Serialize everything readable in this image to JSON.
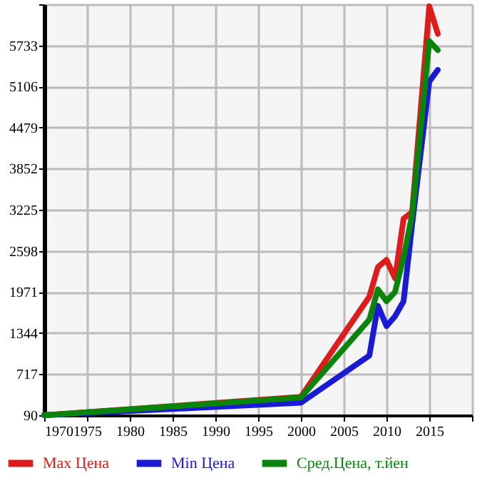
{
  "chart_data": {
    "type": "line",
    "x": [
      1970,
      2000,
      2008,
      2009,
      2010,
      2011,
      2012,
      2013,
      2015,
      2016
    ],
    "series": [
      {
        "name": "Max Цена",
        "color": "#dd1c1c",
        "values": [
          90,
          370,
          1900,
          2350,
          2460,
          2180,
          3090,
          3190,
          6330,
          5910
        ]
      },
      {
        "name": "Min Цена",
        "color": "#1a1ad6",
        "values": [
          90,
          280,
          1000,
          1760,
          1450,
          1600,
          1830,
          3000,
          5180,
          5360
        ]
      },
      {
        "name": "Сред.Цена, т.йен",
        "color": "#0a840a",
        "values": [
          90,
          360,
          1550,
          2010,
          1830,
          1970,
          2500,
          3150,
          5800,
          5660
        ]
      }
    ],
    "xlim": [
      1970,
      2020
    ],
    "xticks": [
      1970,
      1975,
      1980,
      1985,
      1990,
      1995,
      2000,
      2005,
      2010,
      2015,
      {
        "value": 2020,
        "label": null
      }
    ],
    "ylim": [
      90,
      6360
    ],
    "yticks": [
      90,
      717,
      1344,
      1971,
      2598,
      3225,
      3852,
      4479,
      5106,
      5733,
      {
        "value": 6360,
        "label": null
      }
    ],
    "grid": true,
    "legend": "bottom",
    "marker": "none",
    "line_style": "solid"
  }
}
